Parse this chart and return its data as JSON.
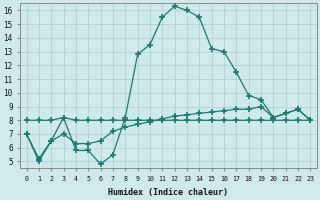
{
  "xlabel": "Humidex (Indice chaleur)",
  "x": [
    0,
    1,
    2,
    3,
    4,
    5,
    6,
    7,
    8,
    9,
    10,
    11,
    12,
    13,
    14,
    15,
    16,
    17,
    18,
    19,
    20,
    21,
    22,
    23
  ],
  "line1": [
    7.0,
    5.0,
    6.5,
    8.2,
    5.8,
    5.8,
    4.8,
    5.5,
    8.2,
    12.8,
    13.5,
    15.5,
    16.3,
    16.0,
    15.5,
    13.2,
    13.0,
    11.5,
    9.8,
    9.5,
    8.2,
    8.5,
    8.8,
    8.0
  ],
  "line2": [
    8.0,
    8.0,
    8.0,
    8.2,
    8.0,
    8.0,
    8.0,
    8.0,
    8.0,
    8.0,
    8.0,
    8.0,
    8.0,
    8.0,
    8.0,
    8.0,
    8.0,
    8.0,
    8.0,
    8.0,
    8.0,
    8.0,
    8.0,
    8.0
  ],
  "line3": [
    7.0,
    5.2,
    6.5,
    7.0,
    6.3,
    6.3,
    6.5,
    7.2,
    7.5,
    7.7,
    7.9,
    8.1,
    8.3,
    8.4,
    8.5,
    8.6,
    8.7,
    8.8,
    8.8,
    9.0,
    8.2,
    8.5,
    8.8,
    8.0
  ],
  "line_color": "#1a7a6e",
  "bg_color": "#ceeaea",
  "grid_color": "#aacece",
  "ylim": [
    4.5,
    16.5
  ],
  "yticks": [
    5,
    6,
    7,
    8,
    9,
    10,
    11,
    12,
    13,
    14,
    15,
    16
  ],
  "xticks": [
    0,
    1,
    2,
    3,
    4,
    5,
    6,
    7,
    8,
    9,
    10,
    11,
    12,
    13,
    14,
    15,
    16,
    17,
    18,
    19,
    20,
    21,
    22,
    23
  ]
}
